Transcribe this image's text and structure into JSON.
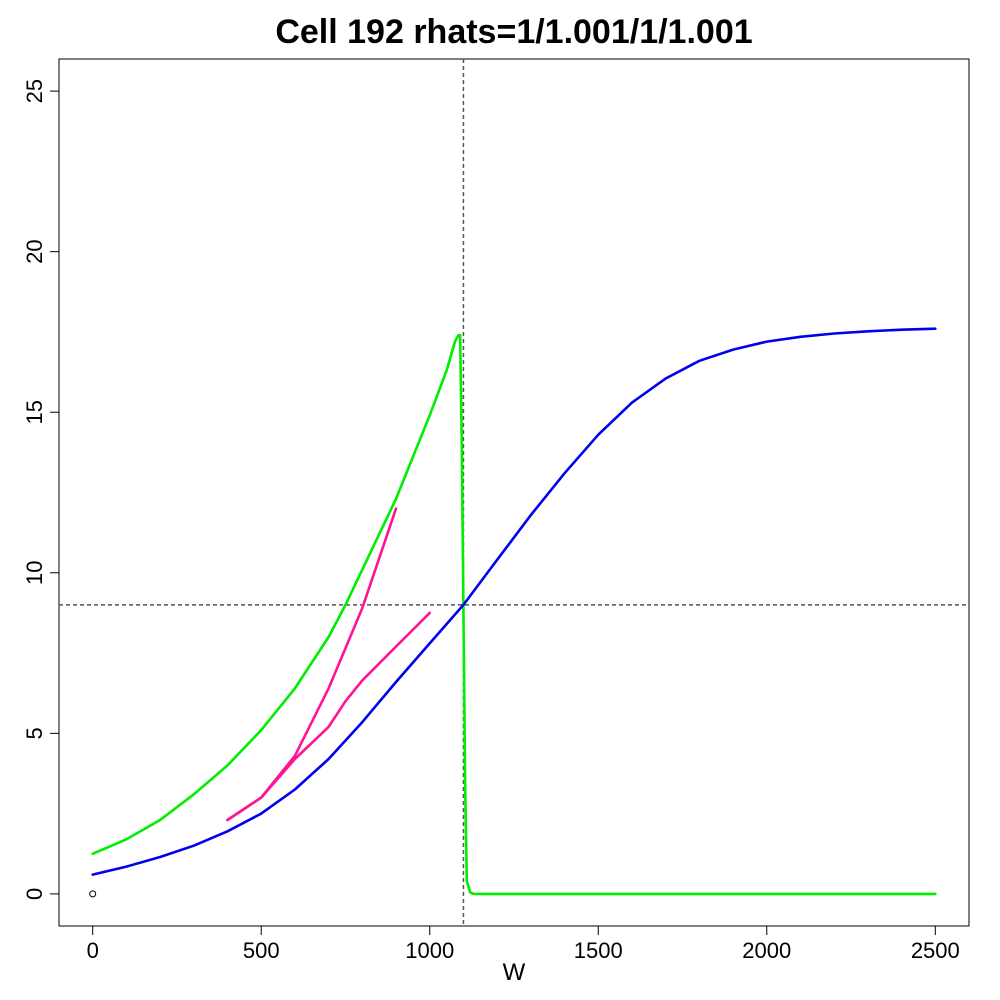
{
  "chart_data": {
    "type": "line",
    "title": "Cell 192 rhats=1/1.001/1/1.001",
    "xlabel": "W",
    "ylabel": "",
    "xlim": [
      -100,
      2600
    ],
    "ylim": [
      -1,
      26
    ],
    "x_ticks": [
      0,
      500,
      1000,
      1500,
      2000,
      2500
    ],
    "x_tick_labels": [
      "0",
      "500",
      "1000",
      "1500",
      "2000",
      "2500"
    ],
    "y_ticks": [
      0,
      5,
      10,
      15,
      20,
      25
    ],
    "y_tick_labels": [
      "0",
      "5",
      "10",
      "15",
      "20",
      "25"
    ],
    "grid": false,
    "legend": "none",
    "reference_lines": {
      "vertical_x": 1100,
      "horizontal_y": 9,
      "style": "dashed",
      "color": "#555555"
    },
    "point": {
      "x": 0,
      "y": 0,
      "marker": "open-circle"
    },
    "series": [
      {
        "color": "#00ee00",
        "x": [
          0,
          100,
          200,
          300,
          400,
          500,
          600,
          700,
          750,
          800,
          900,
          1000,
          1050,
          1075,
          1085,
          1090,
          1095,
          1100,
          1105,
          1110,
          1120,
          1130,
          1200,
          1500,
          2000,
          2500
        ],
        "y": [
          1.25,
          1.7,
          2.3,
          3.1,
          4.0,
          5.1,
          6.4,
          8.0,
          9.0,
          10.1,
          12.3,
          14.9,
          16.3,
          17.2,
          17.4,
          17.4,
          14.0,
          9.0,
          3.5,
          0.4,
          0.05,
          0.0,
          0.0,
          0.0,
          0.0,
          0.0
        ]
      },
      {
        "color": "#0000ee",
        "x": [
          0,
          100,
          200,
          300,
          400,
          500,
          600,
          700,
          800,
          900,
          1000,
          1100,
          1200,
          1300,
          1400,
          1500,
          1600,
          1700,
          1800,
          1900,
          2000,
          2100,
          2200,
          2300,
          2400,
          2500
        ],
        "y": [
          0.6,
          0.85,
          1.15,
          1.5,
          1.95,
          2.5,
          3.25,
          4.2,
          5.35,
          6.6,
          7.8,
          9.0,
          10.4,
          11.8,
          13.1,
          14.3,
          15.3,
          16.05,
          16.6,
          16.95,
          17.2,
          17.35,
          17.45,
          17.52,
          17.57,
          17.6
        ]
      },
      {
        "color": "#ff1493",
        "x": [
          400,
          500,
          600,
          700,
          800,
          900
        ],
        "y": [
          2.3,
          3.0,
          4.3,
          6.4,
          8.9,
          12.0
        ]
      },
      {
        "color": "#ff1493",
        "x": [
          400,
          500,
          600,
          700,
          750,
          800,
          900,
          1000
        ],
        "y": [
          2.3,
          3.0,
          4.2,
          5.2,
          6.0,
          6.65,
          7.7,
          8.75
        ]
      }
    ]
  }
}
